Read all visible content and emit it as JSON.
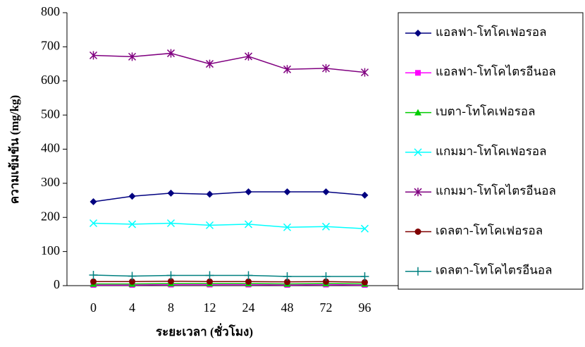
{
  "chart_data": {
    "type": "line",
    "x_label": "ระยะเวลา (ชั่วโมง)",
    "y_label": "ความเข้มข้น (mg/kg)",
    "categories": [
      "0",
      "4",
      "8",
      "12",
      "24",
      "48",
      "72",
      "96"
    ],
    "ylim": [
      0,
      800
    ],
    "yticks": [
      0,
      100,
      200,
      300,
      400,
      500,
      600,
      700,
      800
    ],
    "legend": "right",
    "series": [
      {
        "name": "แอลฟา-โทโคเฟอรอล",
        "color": "#000080",
        "marker": "diamond",
        "values": [
          246,
          262,
          271,
          268,
          275,
          275,
          275,
          265
        ]
      },
      {
        "name": "แอลฟา-โทโคไตรอีนอล",
        "color": "#ff00ff",
        "marker": "square",
        "values": [
          2,
          2,
          3,
          3,
          3,
          2,
          3,
          2
        ]
      },
      {
        "name": "เบตา-โทโคเฟอรอล",
        "color": "#00cc00",
        "marker": "triangle",
        "values": [
          5,
          5,
          6,
          6,
          6,
          5,
          6,
          5
        ]
      },
      {
        "name": "แกมมา-โทโคเฟอรอล",
        "color": "#00ffff",
        "marker": "x",
        "values": [
          183,
          180,
          183,
          177,
          180,
          171,
          173,
          167
        ]
      },
      {
        "name": "แกมมา-โทโคไตรอีนอล",
        "color": "#800080",
        "marker": "star",
        "values": [
          675,
          671,
          681,
          650,
          672,
          634,
          637,
          625
        ]
      },
      {
        "name": "เดลตา-โทโคเฟอรอล",
        "color": "#800000",
        "marker": "circle",
        "values": [
          12,
          12,
          13,
          12,
          12,
          11,
          12,
          10
        ]
      },
      {
        "name": "เดลตา-โทโคไตรอีนอล",
        "color": "#008080",
        "marker": "plus",
        "values": [
          31,
          28,
          30,
          30,
          30,
          27,
          27,
          27
        ]
      }
    ]
  }
}
